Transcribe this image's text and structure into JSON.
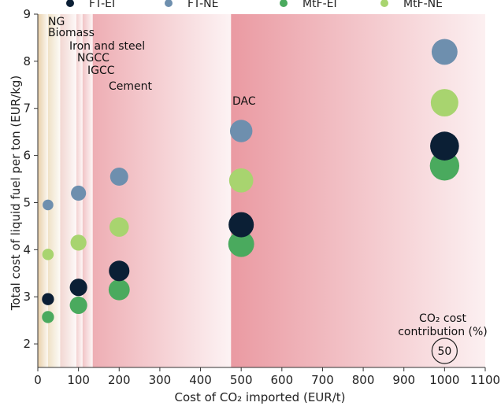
{
  "chart_data": {
    "type": "scatter",
    "xlabel": "Cost of CO₂ imported (EUR/t)",
    "ylabel": "Total cost of liquid fuel per ton (EUR/kg)",
    "xlim": [
      0,
      1100
    ],
    "ylim": [
      1.5,
      9
    ],
    "xticks": [
      0,
      100,
      200,
      300,
      400,
      500,
      600,
      700,
      800,
      900,
      1000,
      1100
    ],
    "yticks": [
      2,
      3,
      4,
      5,
      6,
      7,
      8,
      9
    ],
    "legend_position": "top",
    "series": [
      {
        "name": "FT-EI",
        "color": "#0b1f35",
        "points": [
          {
            "x": 25,
            "y": 2.95,
            "share": 6
          },
          {
            "x": 100,
            "y": 3.2,
            "share": 18
          },
          {
            "x": 200,
            "y": 3.55,
            "share": 28
          },
          {
            "x": 500,
            "y": 4.53,
            "share": 47
          },
          {
            "x": 1000,
            "y": 6.2,
            "share": 65
          }
        ]
      },
      {
        "name": "FT-NE",
        "color": "#6e8fae",
        "points": [
          {
            "x": 25,
            "y": 4.95,
            "share": 4
          },
          {
            "x": 100,
            "y": 5.2,
            "share": 12
          },
          {
            "x": 200,
            "y": 5.55,
            "share": 20
          },
          {
            "x": 500,
            "y": 6.52,
            "share": 35
          },
          {
            "x": 1000,
            "y": 8.2,
            "share": 50
          }
        ]
      },
      {
        "name": "MtF-EI",
        "color": "#4aaa5e",
        "points": [
          {
            "x": 25,
            "y": 2.57,
            "share": 6
          },
          {
            "x": 100,
            "y": 2.82,
            "share": 18
          },
          {
            "x": 200,
            "y": 3.15,
            "share": 30
          },
          {
            "x": 500,
            "y": 4.12,
            "share": 50
          },
          {
            "x": 1000,
            "y": 5.78,
            "share": 68
          }
        ]
      },
      {
        "name": "MtF-NE",
        "color": "#a8d46f",
        "points": [
          {
            "x": 25,
            "y": 3.9,
            "share": 5
          },
          {
            "x": 100,
            "y": 4.15,
            "share": 14
          },
          {
            "x": 200,
            "y": 4.48,
            "share": 24
          },
          {
            "x": 500,
            "y": 5.47,
            "share": 42
          },
          {
            "x": 1000,
            "y": 7.12,
            "share": 58
          }
        ]
      }
    ],
    "regions": [
      {
        "label": "NG",
        "x0": 0,
        "x1": 25,
        "color": "#e8cfa8"
      },
      {
        "label": "Biomass",
        "x0": 25,
        "x1": 55,
        "color": "#efe1c6"
      },
      {
        "label": "Iron and steel",
        "x0": 55,
        "x1": 95,
        "color": "#f2d7d2"
      },
      {
        "label": "NGCC",
        "x0": 95,
        "x1": 110,
        "color": "#f3d0d0"
      },
      {
        "label": "IGCC",
        "x0": 110,
        "x1": 135,
        "color": "#f1c4c6"
      },
      {
        "label": "Cement",
        "x0": 135,
        "x1": 475,
        "color": "#eeaeb4"
      },
      {
        "label": "DAC",
        "x0": 475,
        "x1": 1100,
        "color": "#ea9aa2"
      }
    ],
    "size_legend": {
      "title_line1": "CO₂ cost",
      "title_line2": "contribution (%)",
      "value": "50"
    }
  }
}
